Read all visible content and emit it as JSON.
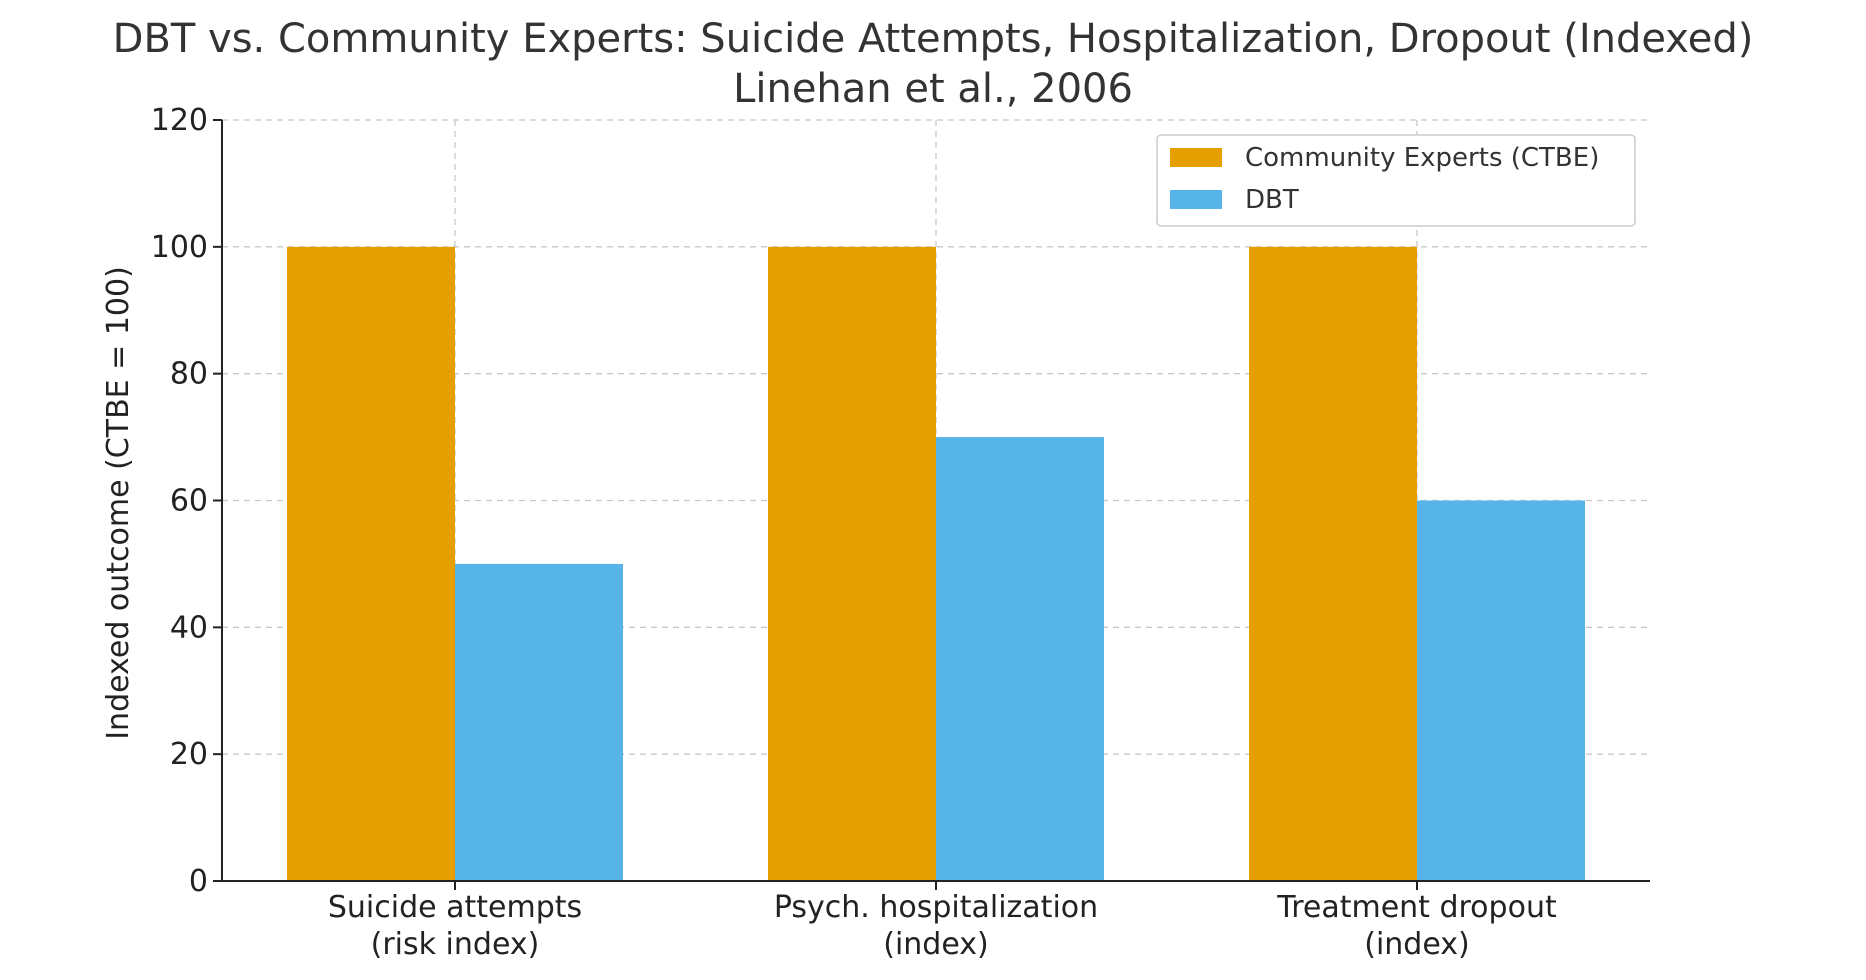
{
  "chart_data": {
    "type": "bar",
    "title": "DBT vs. Community Experts: Suicide Attempts, Hospitalization, Dropout (Indexed)",
    "subtitle": "Linehan et al., 2006",
    "xlabel": "",
    "ylabel": "Indexed outcome (CTBE = 100)",
    "ylim": [
      0,
      120
    ],
    "yticks": [
      0,
      20,
      40,
      60,
      80,
      100,
      120
    ],
    "categories": [
      [
        "Suicide attempts",
        "(risk index)"
      ],
      [
        "Psych. hospitalization",
        "(index)"
      ],
      [
        "Treatment dropout",
        "(index)"
      ]
    ],
    "series": [
      {
        "name": "Community Experts (CTBE)",
        "color": "#E69F00",
        "values": [
          100,
          100,
          100
        ]
      },
      {
        "name": "DBT",
        "color": "#56B4E9",
        "values": [
          50,
          70,
          60
        ]
      }
    ],
    "grid": true,
    "legend_position": "top-right"
  }
}
